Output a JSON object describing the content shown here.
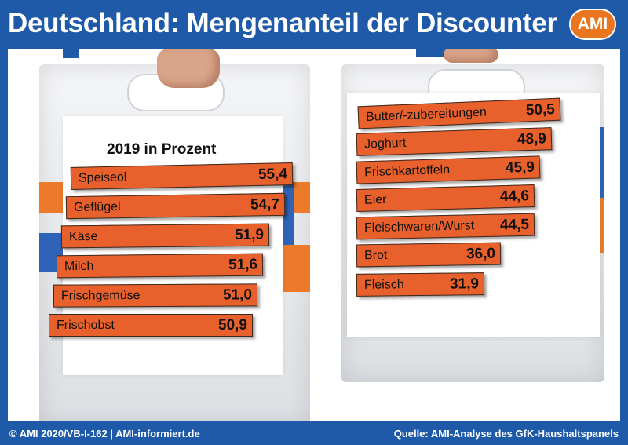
{
  "header": {
    "title": "Deutschland: Mengenanteil der Discounter",
    "logo_text": "AMI"
  },
  "footer": {
    "left": "© AMI 2020/VB-I-162 | AMI-informiert.de",
    "right": "Quelle: AMI-Analyse des GfK-Haushaltspanels"
  },
  "colors": {
    "brand_blue": "#1e5aa8",
    "bar_orange": "#e8612c",
    "logo_orange": "#e9761f"
  },
  "chart_data": {
    "type": "bar",
    "subtitle": "2019 in Prozent",
    "categories": [
      "Speiseöl",
      "Geflügel",
      "Käse",
      "Milch",
      "Frischgemüse",
      "Frischobst",
      "Butter/-zubereitungen",
      "Joghurt",
      "Frischkartoffeln",
      "Eier",
      "Fleischwaren/Wurst",
      "Brot",
      "Fleisch"
    ],
    "values": [
      55.4,
      54.7,
      51.9,
      51.6,
      51.0,
      50.9,
      50.5,
      48.9,
      45.9,
      44.6,
      44.5,
      36.0,
      31.9
    ],
    "value_labels": [
      "55,4",
      "54,7",
      "51,9",
      "51,6",
      "51,0",
      "50,9",
      "50,5",
      "48,9",
      "45,9",
      "44,6",
      "44,5",
      "36,0",
      "31,9"
    ],
    "orientation": "horizontal",
    "unit": "Prozent"
  }
}
